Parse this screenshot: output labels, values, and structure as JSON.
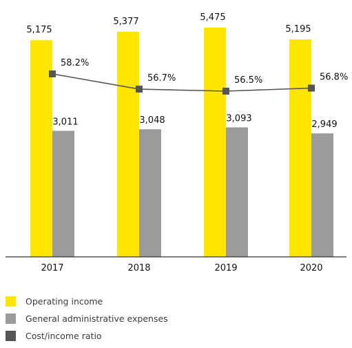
{
  "colors": {
    "operating_income": "#FFE600",
    "admin_expenses": "#9B9B9B",
    "cost_income": "#555555",
    "axis": "#333333",
    "text": "#111111"
  },
  "chart_data": {
    "type": "bar",
    "categories": [
      "2017",
      "2018",
      "2019",
      "2020"
    ],
    "series": [
      {
        "name": "Operating income",
        "type": "bar",
        "values": [
          5175,
          5377,
          5475,
          5195
        ],
        "labels": [
          "5,175",
          "5,377",
          "5,475",
          "5,195"
        ]
      },
      {
        "name": "General administrative expenses",
        "type": "bar",
        "values": [
          3011,
          3048,
          3093,
          2949
        ],
        "labels": [
          "3,011",
          "3,048",
          "3,093",
          "2,949"
        ]
      },
      {
        "name": "Cost/income ratio",
        "type": "line",
        "values": [
          58.2,
          56.7,
          56.5,
          56.8
        ],
        "labels": [
          "58.2%",
          "56.7%",
          "56.5%",
          "56.8%"
        ]
      }
    ],
    "ylim": [
      0,
      5475
    ],
    "ratio_ylim": [
      0,
      100
    ],
    "grid": false,
    "legend_position": "bottom-left"
  },
  "legend": [
    {
      "label": "Operating income",
      "color": "#FFE600"
    },
    {
      "label": "General administrative expenses",
      "color": "#9B9B9B"
    },
    {
      "label": "Cost/income ratio",
      "color": "#555555"
    }
  ]
}
